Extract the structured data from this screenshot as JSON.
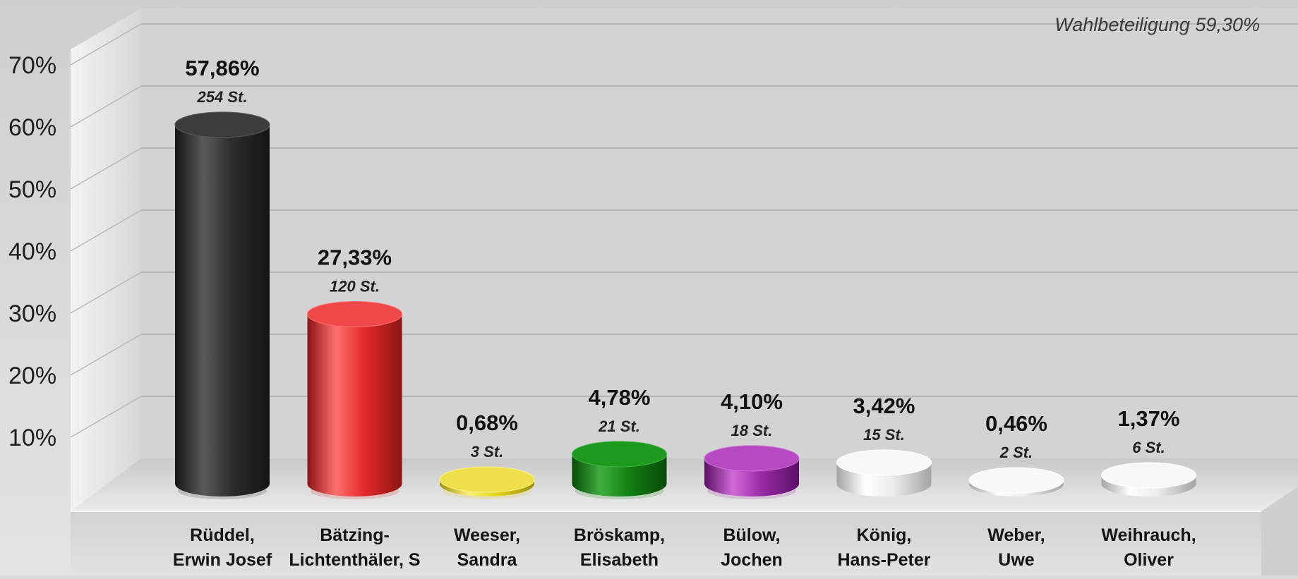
{
  "colors": {
    "black": "#2c2c2c",
    "red": "#e52a2a",
    "yellow": "#e6d620",
    "green": "#128012",
    "purple": "#9a2aa6",
    "white": "#f2f2f2"
  },
  "chart_data": {
    "type": "bar",
    "title": "",
    "xlabel": "",
    "ylabel": "",
    "ylim": [
      0,
      70
    ],
    "yticks": [
      "10%",
      "20%",
      "30%",
      "40%",
      "50%",
      "60%",
      "70%"
    ],
    "annotation": "Wahlbeteiligung 59,30%",
    "grid": true,
    "categories": [
      [
        "Rüddel,",
        "Erwin Josef"
      ],
      [
        "Bätzing-",
        "Lichtenthäler, S"
      ],
      [
        "Weeser,",
        "Sandra"
      ],
      [
        "Bröskamp,",
        "Elisabeth"
      ],
      [
        "Bülow,",
        "Jochen"
      ],
      [
        "König,",
        "Hans-Peter"
      ],
      [
        "Weber,",
        "Uwe"
      ],
      [
        "Weihrauch,",
        "Oliver"
      ]
    ],
    "values": [
      57.86,
      27.33,
      0.68,
      4.78,
      4.1,
      3.42,
      0.46,
      1.37
    ],
    "value_labels": [
      "57,86%",
      "27,33%",
      "0,68%",
      "4,78%",
      "4,10%",
      "3,42%",
      "0,46%",
      "1,37%"
    ],
    "vote_labels": [
      "254 St.",
      "120 St.",
      "3 St.",
      "21 St.",
      "18 St.",
      "15 St.",
      "2 St.",
      "6 St."
    ],
    "bar_colors": [
      "black",
      "red",
      "yellow",
      "green",
      "purple",
      "white",
      "white",
      "white"
    ]
  }
}
